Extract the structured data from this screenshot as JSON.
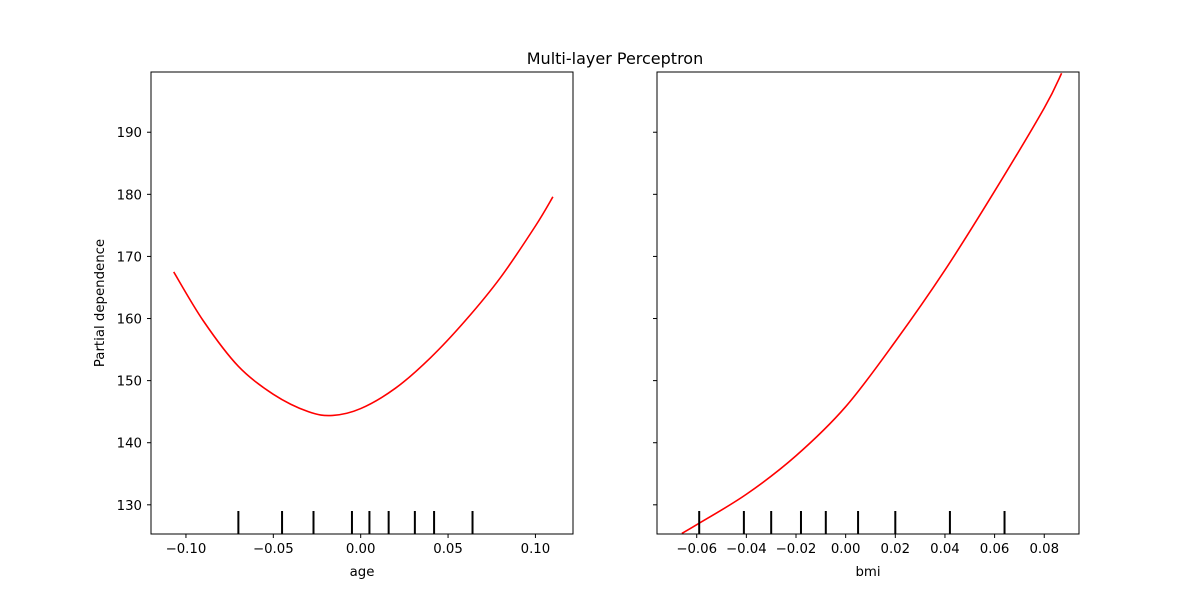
{
  "chart_data": {
    "type": "line",
    "title": "Multi-layer Perceptron",
    "ylabel": "Partial dependence",
    "line_color": "#ff0000",
    "deciles_color": "#000000",
    "ylim": [
      125.3,
      199.7
    ],
    "yticks": [
      130,
      140,
      150,
      160,
      170,
      180,
      190
    ],
    "sharey": true,
    "panels": [
      {
        "xlabel": "age",
        "xlim": [
          -0.12,
          0.1215
        ],
        "xticks": [
          -0.1,
          -0.05,
          0.0,
          0.05,
          0.1
        ],
        "xtick_labels": [
          "−0.10",
          "−0.05",
          "0.00",
          "0.05",
          "0.10"
        ],
        "show_ytick_labels": true,
        "series": [
          {
            "x": [
              -0.107,
              -0.09,
              -0.07,
              -0.05,
              -0.03,
              -0.016,
              0.0,
              0.02,
              0.04,
              0.06,
              0.08,
              0.1,
              0.11
            ],
            "y": [
              167.5,
              159.6,
              152.3,
              147.8,
              145.0,
              144.4,
              145.5,
              148.8,
              153.7,
              159.7,
              166.6,
              174.9,
              179.6
            ]
          }
        ],
        "deciles": [
          -0.07,
          -0.045,
          -0.027,
          -0.005,
          0.005,
          0.016,
          0.031,
          0.042,
          0.064
        ]
      },
      {
        "xlabel": "bmi",
        "xlim": [
          -0.076,
          0.094
        ],
        "xticks": [
          -0.06,
          -0.04,
          -0.02,
          0.0,
          0.02,
          0.04,
          0.06,
          0.08
        ],
        "xtick_labels": [
          "−0.06",
          "−0.04",
          "−0.02",
          "0.00",
          "0.02",
          "0.04",
          "0.06",
          "0.08"
        ],
        "show_ytick_labels": false,
        "series": [
          {
            "x": [
              -0.066,
              -0.06,
              -0.04,
              -0.02,
              0.0,
              0.02,
              0.04,
              0.06,
              0.08,
              0.087
            ],
            "y": [
              125.4,
              126.8,
              131.7,
              137.9,
              145.8,
              156.3,
              167.8,
              180.5,
              193.9,
              199.5
            ]
          }
        ],
        "deciles": [
          -0.059,
          -0.041,
          -0.03,
          -0.018,
          -0.008,
          0.005,
          0.02,
          0.042,
          0.064
        ]
      }
    ]
  }
}
